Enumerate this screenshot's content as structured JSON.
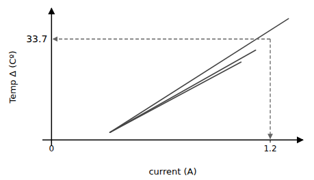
{
  "chart_data": {
    "type": "line",
    "xlabel": "current (A)",
    "ylabel": "Temp Δ (Cº)",
    "xlim": [
      -0.05,
      1.38
    ],
    "ylim": [
      -2,
      44
    ],
    "xticks": [
      0,
      1.2
    ],
    "tick_labels": "x",
    "grid": false,
    "color": "#444444",
    "series": [
      {
        "x": [
          0.32,
          1.3
        ],
        "values": [
          2.5,
          40.5
        ]
      },
      {
        "x": [
          0.32,
          1.12
        ],
        "values": [
          2.5,
          30.0
        ]
      },
      {
        "x": [
          0.32,
          1.04
        ],
        "values": [
          2.5,
          26.0
        ]
      }
    ],
    "annotations": [
      {
        "x": 1.2,
        "y": 33.7,
        "label": "33.7",
        "color": "#666666",
        "line_style": "dashed"
      }
    ]
  }
}
